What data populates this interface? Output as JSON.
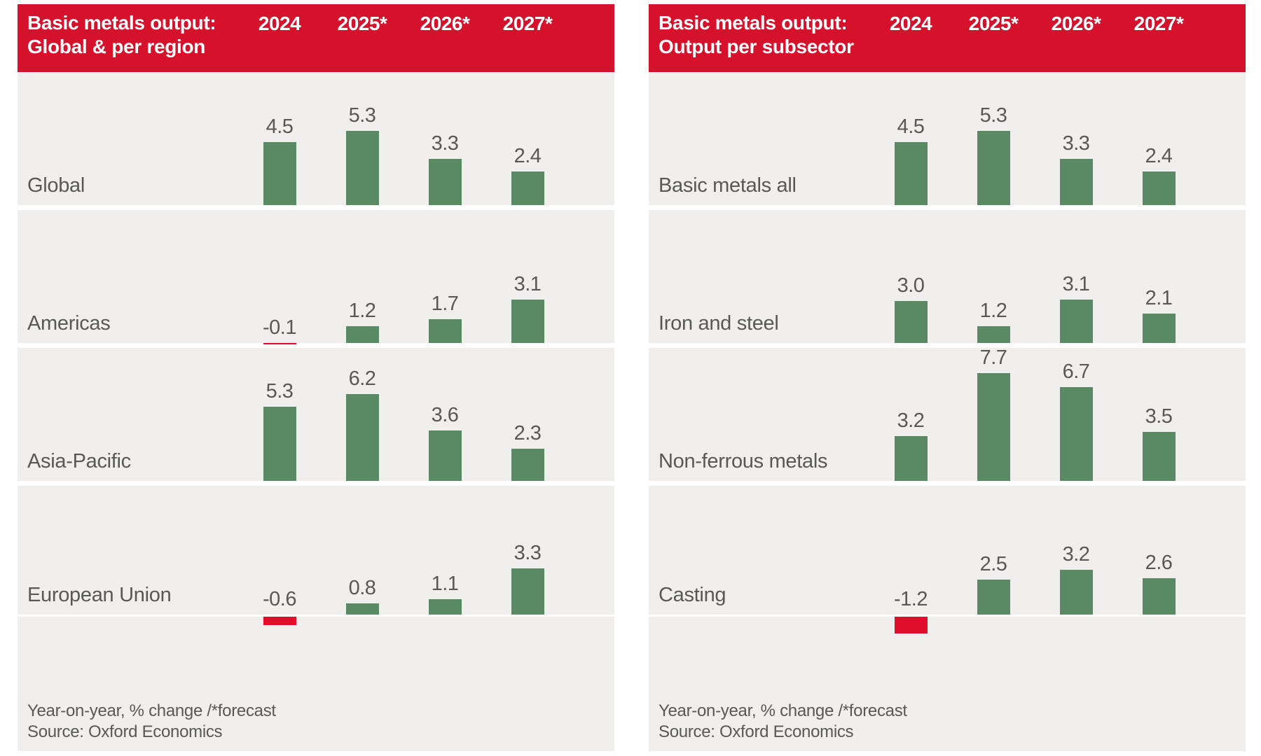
{
  "colors": {
    "header_bg": "#d5112c",
    "header_text": "#ffffff",
    "bar_positive": "#5a8a64",
    "bar_negative": "#e00d2b",
    "band_bg": "#f1efed",
    "text": "#585856"
  },
  "chart_data": [
    {
      "type": "bar",
      "title_line1": "Basic metals output:",
      "title_line2": "Global & per region",
      "columns": [
        "2024",
        "2025*",
        "2026*",
        "2027*"
      ],
      "rows": [
        {
          "label": "Global",
          "values": [
            4.5,
            5.3,
            3.3,
            2.4
          ]
        },
        {
          "label": "Americas",
          "values": [
            -0.1,
            1.2,
            1.7,
            3.1
          ]
        },
        {
          "label": "Asia-Pacific",
          "values": [
            5.3,
            6.2,
            3.6,
            2.3
          ]
        },
        {
          "label": "European Union",
          "values": [
            -0.6,
            0.8,
            1.1,
            3.3
          ]
        }
      ],
      "footnote_line1": "Year-on-year, % change /*forecast",
      "footnote_line2": "Source: Oxford Economics"
    },
    {
      "type": "bar",
      "title_line1": "Basic metals output:",
      "title_line2": "Output per subsector",
      "columns": [
        "2024",
        "2025*",
        "2026*",
        "2027*"
      ],
      "rows": [
        {
          "label": "Basic metals all",
          "values": [
            4.5,
            5.3,
            3.3,
            2.4
          ]
        },
        {
          "label": "Iron and steel",
          "values": [
            3.0,
            1.2,
            3.1,
            2.1
          ]
        },
        {
          "label": "Non-ferrous metals",
          "values": [
            3.2,
            7.7,
            6.7,
            3.5
          ]
        },
        {
          "label": "Casting",
          "values": [
            -1.2,
            2.5,
            3.2,
            2.6
          ]
        }
      ],
      "footnote_line1": "Year-on-year, % change /*forecast",
      "footnote_line2": "Source: Oxford Economics"
    }
  ]
}
